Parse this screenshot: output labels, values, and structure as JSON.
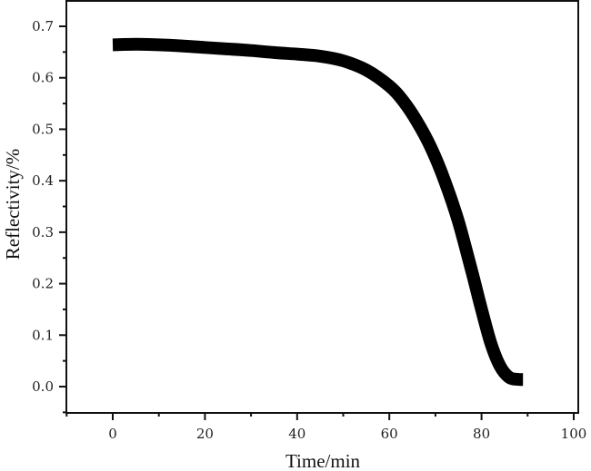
{
  "chart_data": {
    "type": "line",
    "title": "",
    "xlabel": "Time/min",
    "ylabel": "Reflectivity/%",
    "xlim": [
      -10,
      100
    ],
    "ylim": [
      -0.05,
      0.75
    ],
    "x_ticks": [
      0,
      20,
      40,
      60,
      80,
      100
    ],
    "x_tick_labels": [
      "0",
      "20",
      "40",
      "60",
      "80",
      "100"
    ],
    "x_minor_ticks": [
      -10,
      10,
      30,
      50,
      70,
      90
    ],
    "y_ticks": [
      0.0,
      0.1,
      0.2,
      0.3,
      0.4,
      0.5,
      0.6,
      0.7
    ],
    "y_tick_labels": [
      "0.0",
      "0.1",
      "0.2",
      "0.3",
      "0.4",
      "0.5",
      "0.6",
      "0.7"
    ],
    "y_minor_ticks": [
      -0.05,
      0.05,
      0.15,
      0.25,
      0.35,
      0.45,
      0.55,
      0.65
    ],
    "grid": false,
    "legend": null,
    "series": [
      {
        "name": "Reflectivity",
        "color": "#000000",
        "line_width": 14,
        "x": [
          0,
          5,
          10,
          15,
          20,
          25,
          30,
          35,
          40,
          45,
          50,
          55,
          60,
          63,
          66,
          69,
          72,
          75,
          78,
          80,
          82,
          84,
          86,
          88,
          89
        ],
        "values": [
          0.664,
          0.665,
          0.664,
          0.662,
          0.659,
          0.656,
          0.653,
          0.649,
          0.646,
          0.642,
          0.633,
          0.615,
          0.584,
          0.555,
          0.515,
          0.465,
          0.4,
          0.32,
          0.22,
          0.15,
          0.085,
          0.04,
          0.018,
          0.014,
          0.014
        ]
      }
    ]
  }
}
